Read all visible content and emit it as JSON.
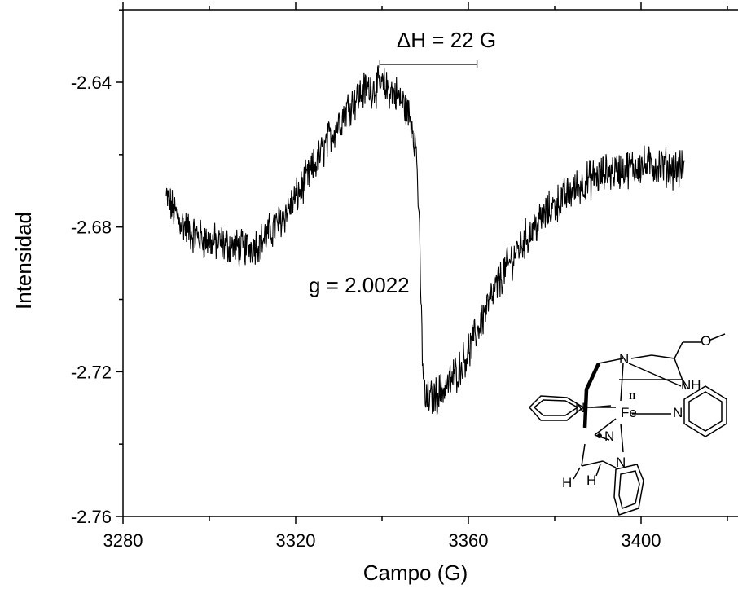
{
  "chart_data": {
    "type": "line",
    "title": "",
    "xlabel": "Campo (G)",
    "ylabel": "Intensidad",
    "xlim": [
      3280,
      3420
    ],
    "ylim": [
      -2.76,
      -2.62
    ],
    "xticks": [
      3280,
      3320,
      3360,
      3400
    ],
    "xtick_labels": [
      "3280",
      "3320",
      "3360",
      "3400"
    ],
    "yticks": [
      -2.76,
      -2.72,
      -2.68,
      -2.64
    ],
    "ytick_labels": [
      "-2.76",
      "-2.72",
      "-2.68",
      "-2.64"
    ],
    "grid": false,
    "legend": "none",
    "series": [
      {
        "color": "#000000",
        "x": [
          3290,
          3293,
          3296,
          3300,
          3304,
          3308,
          3312,
          3316,
          3320,
          3324,
          3328,
          3332,
          3336,
          3340,
          3343,
          3345,
          3347,
          3348,
          3348.5,
          3349,
          3349.5,
          3350,
          3352,
          3355,
          3358,
          3361,
          3364,
          3368,
          3372,
          3376,
          3380,
          3384,
          3388,
          3392,
          3396,
          3400,
          3404,
          3408,
          3410
        ],
        "y": [
          -2.672,
          -2.678,
          -2.682,
          -2.684,
          -2.685,
          -2.686,
          -2.684,
          -2.679,
          -2.672,
          -2.664,
          -2.655,
          -2.647,
          -2.642,
          -2.641,
          -2.643,
          -2.646,
          -2.651,
          -2.66,
          -2.675,
          -2.7,
          -2.72,
          -2.728,
          -2.727,
          -2.724,
          -2.719,
          -2.712,
          -2.703,
          -2.693,
          -2.685,
          -2.679,
          -2.674,
          -2.67,
          -2.667,
          -2.665,
          -2.664,
          -2.663,
          -2.663,
          -2.664,
          -2.664
        ],
        "noise_amplitude": 0.0045
      }
    ],
    "annotations": [
      {
        "text": "ΔH = 22 G"
      },
      {
        "text": "g = 2.0022"
      }
    ],
    "linewidth_bracket": [
      3339.5,
      3362
    ],
    "inset_structure_labels": [
      "N",
      "O",
      "NH",
      "II",
      "Fe",
      "N",
      "N",
      "N",
      "N",
      "H",
      "H"
    ]
  }
}
